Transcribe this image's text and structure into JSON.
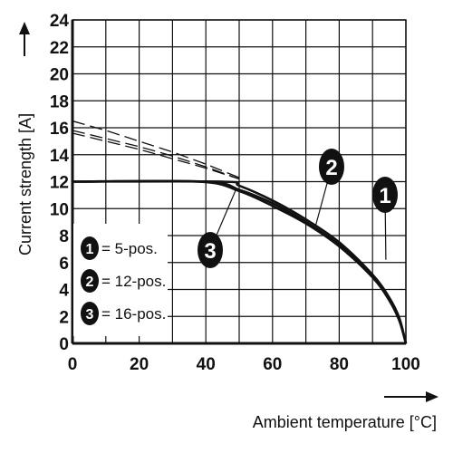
{
  "chart_data": {
    "type": "line",
    "xlabel": "Ambient temperature [°C]",
    "ylabel": "Current strength [A]",
    "xlim": [
      0,
      100
    ],
    "ylim": [
      0,
      24
    ],
    "x_ticks": [
      "0",
      "20",
      "40",
      "60",
      "80",
      "100"
    ],
    "y_ticks": [
      "0",
      "2",
      "4",
      "6",
      "8",
      "10",
      "12",
      "14",
      "16",
      "18",
      "20",
      "22",
      "24"
    ],
    "x_minor_step": 10,
    "grid": true,
    "legend_position": "lower-left",
    "series": [
      {
        "name": "5-pos.",
        "marker": "1",
        "x": [
          0,
          40,
          50,
          60,
          70,
          80,
          90,
          95,
          98,
          100
        ],
        "y": [
          12,
          12,
          11.4,
          10.4,
          9.0,
          7.3,
          5.0,
          3.3,
          1.8,
          0
        ],
        "derating_x": [
          0,
          10,
          20,
          30,
          40,
          50
        ],
        "derating_y": [
          15.6,
          15.0,
          14.4,
          13.7,
          13.0,
          12.2
        ]
      },
      {
        "name": "12-pos.",
        "marker": "2",
        "x": [
          0,
          45,
          50,
          60,
          70,
          80,
          90,
          95,
          98,
          100
        ],
        "y": [
          12,
          12,
          11.7,
          10.6,
          9.2,
          7.5,
          5.1,
          3.4,
          1.9,
          0
        ],
        "derating_x": [
          0,
          10,
          20,
          30,
          40,
          50
        ],
        "derating_y": [
          16.5,
          15.8,
          15.0,
          14.2,
          13.3,
          12.3
        ]
      },
      {
        "name": "16-pos.",
        "marker": "3",
        "x": [
          0,
          38,
          50,
          60,
          70,
          80,
          90,
          95,
          98,
          100
        ],
        "y": [
          12,
          12,
          11.3,
          10.2,
          8.9,
          7.2,
          4.9,
          3.2,
          1.7,
          0
        ],
        "derating_x": [
          0,
          10,
          20,
          30,
          40,
          50
        ],
        "derating_y": [
          15.8,
          15.2,
          14.6,
          13.9,
          13.1,
          12.2
        ]
      }
    ]
  },
  "legend": [
    {
      "marker": "1",
      "label": "= 5-pos."
    },
    {
      "marker": "2",
      "label": "= 12-pos."
    },
    {
      "marker": "3",
      "label": "= 16-pos."
    }
  ]
}
